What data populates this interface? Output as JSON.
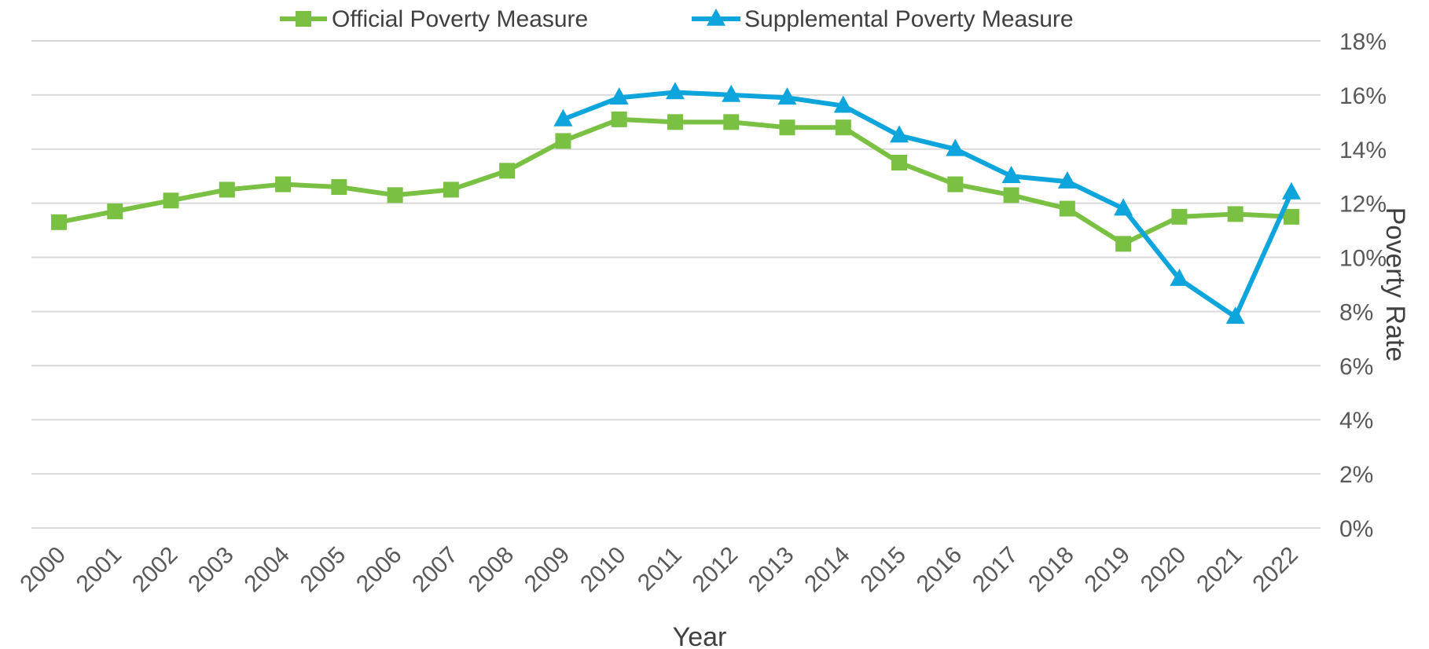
{
  "chart_data": {
    "type": "line",
    "title": "",
    "xlabel": "Year",
    "ylabel": "Poverty Rate",
    "y_axis_side": "right",
    "ylim": [
      0,
      18
    ],
    "yticks": [
      0,
      2,
      4,
      6,
      8,
      10,
      12,
      14,
      16,
      18
    ],
    "ytick_labels": [
      "0%",
      "2%",
      "4%",
      "6%",
      "8%",
      "10%",
      "12%",
      "14%",
      "16%",
      "18%"
    ],
    "grid": true,
    "legend_position": "top",
    "categories": [
      "2000",
      "2001",
      "2002",
      "2003",
      "2004",
      "2005",
      "2006",
      "2007",
      "2008",
      "2009",
      "2010",
      "2011",
      "2012",
      "2013",
      "2014",
      "2015",
      "2016",
      "2017",
      "2018",
      "2019",
      "2020",
      "2021",
      "2022"
    ],
    "series": [
      {
        "name": "Official Poverty Measure",
        "color": "#7ac143",
        "marker": "square",
        "values": [
          11.3,
          11.7,
          12.1,
          12.5,
          12.7,
          12.6,
          12.3,
          12.5,
          13.2,
          14.3,
          15.1,
          15.0,
          15.0,
          14.8,
          14.8,
          13.5,
          12.7,
          12.3,
          11.8,
          10.5,
          11.5,
          11.6,
          11.5
        ]
      },
      {
        "name": "Supplemental Poverty Measure",
        "color": "#0ea5dc",
        "marker": "triangle",
        "values": [
          null,
          null,
          null,
          null,
          null,
          null,
          null,
          null,
          null,
          15.1,
          15.9,
          16.1,
          16.0,
          15.9,
          15.6,
          14.5,
          14.0,
          13.0,
          12.8,
          11.8,
          9.2,
          7.8,
          12.4
        ]
      }
    ]
  }
}
